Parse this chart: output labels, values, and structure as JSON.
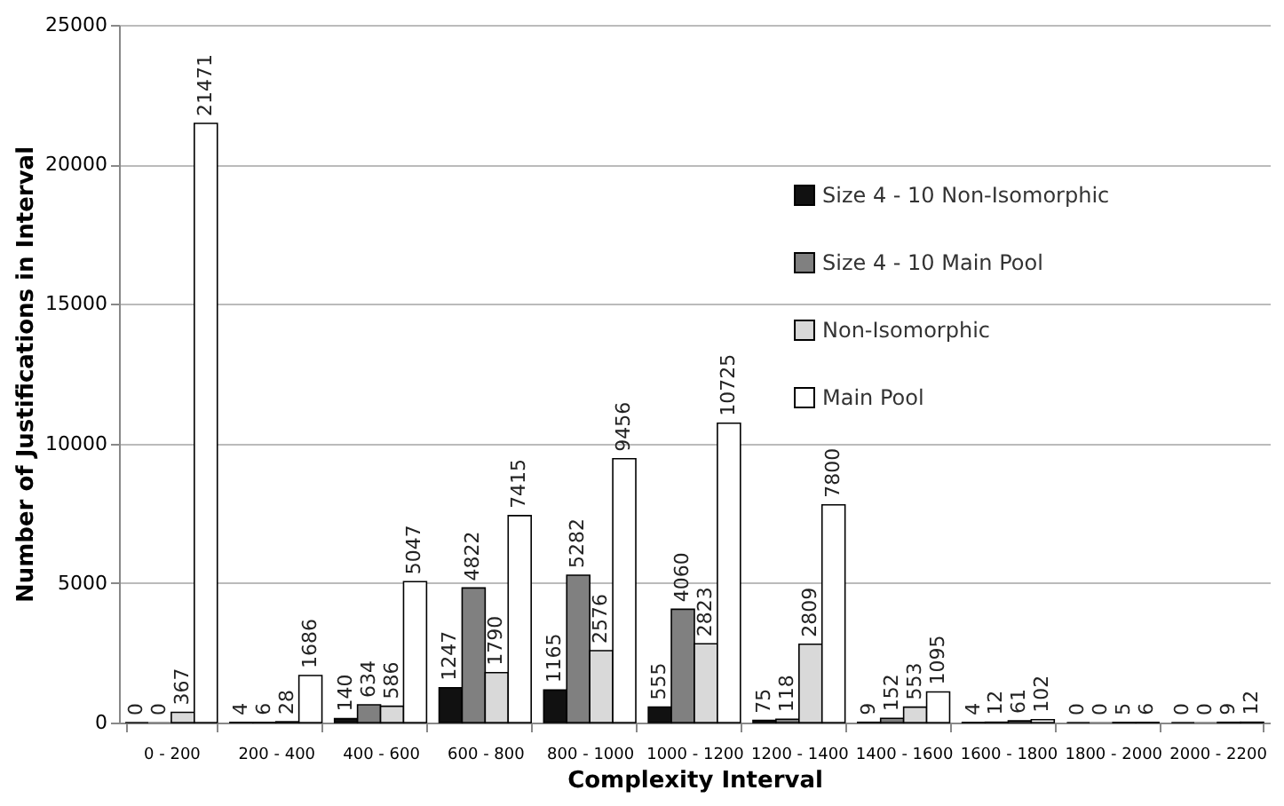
{
  "chart_data": {
    "type": "bar",
    "xlabel": "Complexity Interval",
    "ylabel": "Number of Justifications in Interval",
    "categories": [
      "0 - 200",
      "200 - 400",
      "400 - 600",
      "600 - 800",
      "800 - 1000",
      "1000 - 1200",
      "1200 - 1400",
      "1400 - 1600",
      "1600 - 1800",
      "1800 - 2000",
      "2000 - 2200"
    ],
    "series": [
      {
        "name": "Size 4 - 10 Non-Isomorphic",
        "color": "#111111",
        "values": [
          0,
          4,
          140,
          1247,
          1165,
          555,
          75,
          9,
          4,
          0,
          0
        ]
      },
      {
        "name": "Size 4 - 10 Main Pool",
        "color": "#808080",
        "values": [
          0,
          6,
          634,
          4822,
          5282,
          4060,
          118,
          152,
          12,
          0,
          0
        ]
      },
      {
        "name": "Non-Isomorphic",
        "color": "#d9d9d9",
        "values": [
          367,
          28,
          586,
          1790,
          2576,
          2823,
          2809,
          553,
          61,
          5,
          9
        ]
      },
      {
        "name": "Main Pool",
        "color": "#ffffff",
        "values": [
          21471,
          1686,
          5047,
          7415,
          9456,
          10725,
          7800,
          1095,
          102,
          6,
          12
        ]
      }
    ],
    "ylim": [
      0,
      25000
    ],
    "yticks": [
      0,
      5000,
      10000,
      15000,
      20000,
      25000
    ],
    "grid": "y",
    "legend": "top right",
    "data_labels": true
  }
}
